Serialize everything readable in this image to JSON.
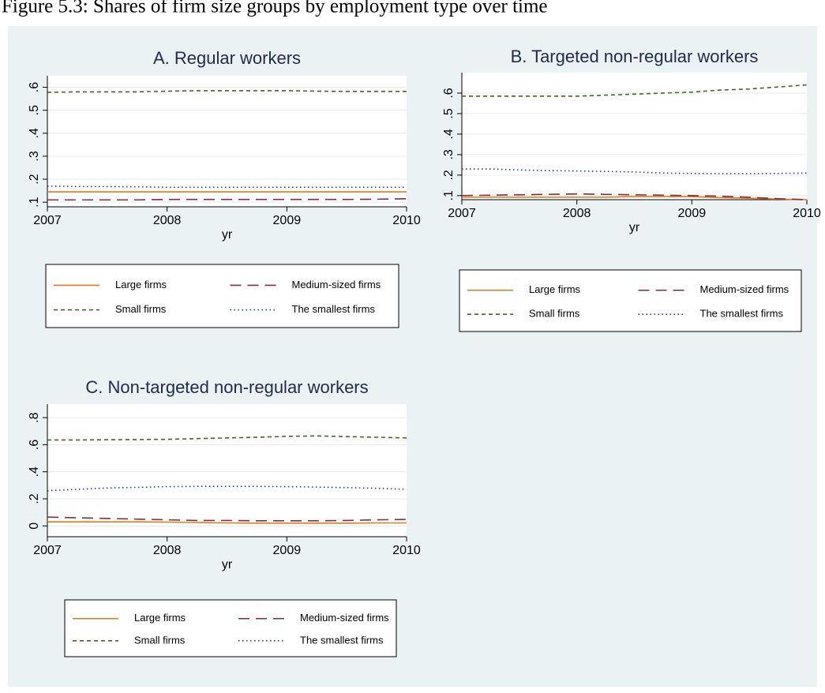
{
  "title": "Figure 5.3: Shares of firm size groups by employment type over time",
  "chart_data": [
    {
      "type": "line",
      "title": "A. Regular workers",
      "xlabel": "yr",
      "x": [
        2007,
        2007.25,
        2007.5,
        2007.75,
        2008,
        2008.25,
        2008.5,
        2008.75,
        2009,
        2009.25,
        2009.5,
        2009.75,
        2010
      ],
      "xlim": [
        2007,
        2010
      ],
      "xticks": [
        2007,
        2008,
        2009,
        2010
      ],
      "ylim": [
        0.08,
        0.65
      ],
      "yticks": [
        {
          "value": 0.1,
          "label": ".1"
        },
        {
          "value": 0.2,
          "label": ".2"
        },
        {
          "value": 0.3,
          "label": ".3"
        },
        {
          "value": 0.4,
          "label": ".4"
        },
        {
          "value": 0.5,
          "label": ".5"
        },
        {
          "value": 0.6,
          "label": ".6"
        }
      ],
      "grid": true,
      "series": [
        {
          "name": "Large firms",
          "color": "#e07b1d",
          "dash": "solid",
          "values": [
            0.145,
            0.145,
            0.145,
            0.145,
            0.145,
            0.145,
            0.145,
            0.145,
            0.145,
            0.145,
            0.145,
            0.145,
            0.145
          ]
        },
        {
          "name": "Medium-sized firms",
          "color": "#8a2b3b",
          "dash": "long",
          "values": [
            0.11,
            0.11,
            0.11,
            0.11,
            0.112,
            0.112,
            0.112,
            0.112,
            0.112,
            0.112,
            0.112,
            0.113,
            0.115
          ]
        },
        {
          "name": "Small firms",
          "color": "#3d6b1f",
          "dash": "short",
          "values": [
            0.578,
            0.58,
            0.58,
            0.58,
            0.583,
            0.585,
            0.585,
            0.585,
            0.585,
            0.583,
            0.582,
            0.582,
            0.582
          ]
        },
        {
          "name": "The smallest firms",
          "color": "#1c3c8c",
          "dash": "dot",
          "values": [
            0.17,
            0.168,
            0.168,
            0.167,
            0.165,
            0.165,
            0.165,
            0.165,
            0.165,
            0.165,
            0.165,
            0.165,
            0.165
          ]
        }
      ]
    },
    {
      "type": "line",
      "title": "B. Targeted non-regular workers",
      "xlabel": "yr",
      "x": [
        2007,
        2007.25,
        2007.5,
        2007.75,
        2008,
        2008.25,
        2008.5,
        2008.75,
        2009,
        2009.25,
        2009.5,
        2009.75,
        2010
      ],
      "xlim": [
        2007,
        2010
      ],
      "xticks": [
        2007,
        2008,
        2009,
        2010
      ],
      "ylim": [
        0.08,
        0.7
      ],
      "yticks": [
        {
          "value": 0.1,
          "label": ".1"
        },
        {
          "value": 0.2,
          "label": ".2"
        },
        {
          "value": 0.3,
          "label": ".3"
        },
        {
          "value": 0.4,
          "label": ".4"
        },
        {
          "value": 0.5,
          "label": ".5"
        },
        {
          "value": 0.6,
          "label": ".6"
        }
      ],
      "grid": true,
      "series": [
        {
          "name": "Large firms",
          "color": "#e07b1d",
          "dash": "solid",
          "values": [
            0.092,
            0.092,
            0.092,
            0.092,
            0.092,
            0.092,
            0.095,
            0.095,
            0.095,
            0.09,
            0.087,
            0.083,
            0.08
          ]
        },
        {
          "name": "Medium-sized firms",
          "color": "#8a2b3b",
          "dash": "long",
          "values": [
            0.1,
            0.102,
            0.104,
            0.106,
            0.108,
            0.106,
            0.104,
            0.102,
            0.1,
            0.097,
            0.092,
            0.085,
            0.08
          ]
        },
        {
          "name": "Small firms",
          "color": "#3d6b1f",
          "dash": "short",
          "values": [
            0.585,
            0.585,
            0.585,
            0.585,
            0.585,
            0.59,
            0.595,
            0.6,
            0.605,
            0.615,
            0.62,
            0.63,
            0.64
          ]
        },
        {
          "name": "The smallest firms",
          "color": "#1c3c8c",
          "dash": "dot",
          "values": [
            0.23,
            0.23,
            0.225,
            0.222,
            0.22,
            0.218,
            0.215,
            0.21,
            0.208,
            0.207,
            0.207,
            0.208,
            0.21
          ]
        }
      ]
    },
    {
      "type": "line",
      "title": "C. Non-targeted non-regular workers",
      "xlabel": "yr",
      "x": [
        2007,
        2007.25,
        2007.5,
        2007.75,
        2008,
        2008.25,
        2008.5,
        2008.75,
        2009,
        2009.25,
        2009.5,
        2009.75,
        2010
      ],
      "xlim": [
        2007,
        2010
      ],
      "xticks": [
        2007,
        2008,
        2009,
        2010
      ],
      "ylim": [
        -0.08,
        0.9
      ],
      "yticks": [
        0,
        {
          "value": 0.2,
          "label": ".2"
        },
        {
          "value": 0.4,
          "label": ".4"
        },
        {
          "value": 0.6,
          "label": ".6"
        },
        {
          "value": 0.8,
          "label": ".8"
        }
      ],
      "grid": true,
      "series": [
        {
          "name": "Large firms",
          "color": "#e07b1d",
          "dash": "solid",
          "values": [
            0.03,
            0.03,
            0.03,
            0.03,
            0.028,
            0.025,
            0.022,
            0.02,
            0.02,
            0.02,
            0.02,
            0.022,
            0.022
          ]
        },
        {
          "name": "Medium-sized firms",
          "color": "#8a2b3b",
          "dash": "long",
          "values": [
            0.065,
            0.06,
            0.055,
            0.05,
            0.045,
            0.04,
            0.04,
            0.038,
            0.038,
            0.038,
            0.04,
            0.045,
            0.048
          ]
        },
        {
          "name": "Small firms",
          "color": "#3d6b1f",
          "dash": "short",
          "values": [
            0.635,
            0.635,
            0.637,
            0.638,
            0.64,
            0.645,
            0.65,
            0.655,
            0.662,
            0.665,
            0.66,
            0.655,
            0.65
          ]
        },
        {
          "name": "The smallest firms",
          "color": "#1c3c8c",
          "dash": "dot",
          "values": [
            0.26,
            0.27,
            0.28,
            0.285,
            0.29,
            0.292,
            0.292,
            0.292,
            0.29,
            0.287,
            0.283,
            0.278,
            0.27
          ]
        }
      ]
    }
  ]
}
